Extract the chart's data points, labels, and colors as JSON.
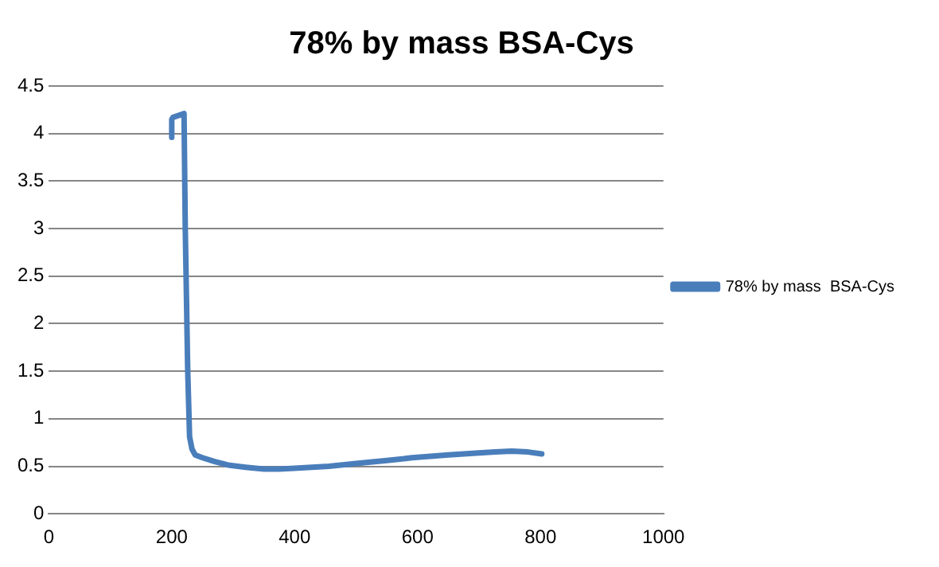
{
  "chart_data": {
    "type": "line",
    "title": "78% by mass BSA-Cys",
    "series": [
      {
        "name": "78% by mass  BSA-Cys",
        "color": "#4a7ebb",
        "x": [
          200,
          200,
          202,
          220,
          222,
          226,
          229,
          233,
          238,
          250,
          270,
          294,
          320,
          350,
          375,
          400,
          456,
          500,
          550,
          591,
          650,
          700,
          726,
          753,
          780,
          802
        ],
        "values": [
          3.96,
          4.15,
          4.17,
          4.21,
          3.0,
          1.5,
          0.81,
          0.68,
          0.62,
          0.59,
          0.55,
          0.51,
          0.49,
          0.47,
          0.47,
          0.48,
          0.5,
          0.53,
          0.56,
          0.59,
          0.62,
          0.64,
          0.65,
          0.66,
          0.65,
          0.63
        ]
      }
    ],
    "xlim": [
      0,
      1000
    ],
    "xticks": [
      0,
      200,
      400,
      600,
      800,
      1000
    ],
    "ylim": [
      0,
      4.5
    ],
    "yticks": [
      0,
      0.5,
      1,
      1.5,
      2,
      2.5,
      3,
      3.5,
      4,
      4.5
    ],
    "grid": "y",
    "legend": "right",
    "marker": "none",
    "line_style": "solid"
  }
}
